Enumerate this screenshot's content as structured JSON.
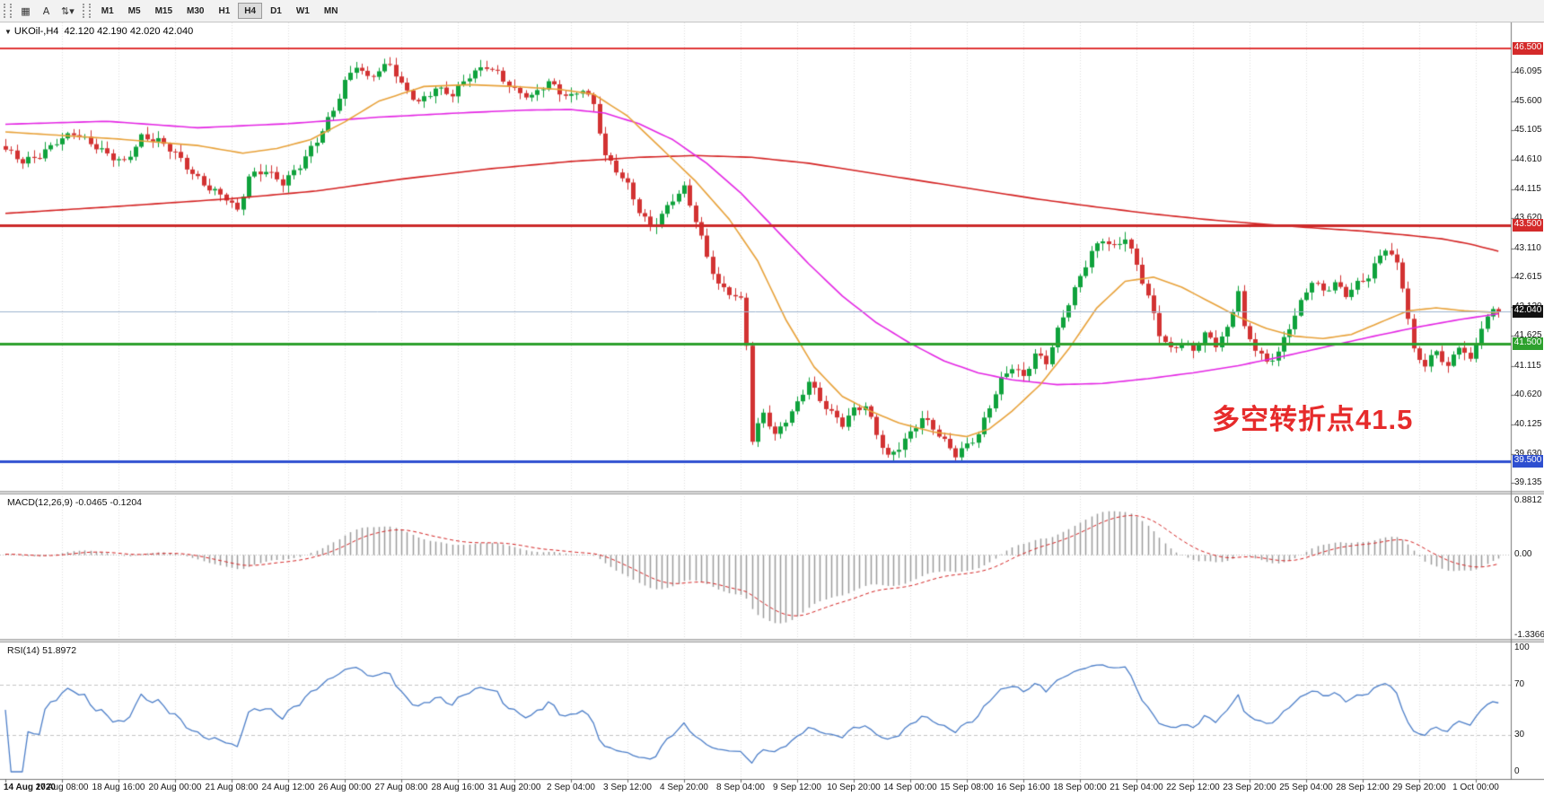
{
  "toolbar": {
    "icon_buttons": [
      {
        "name": "tick-chart-icon",
        "glyph": "▦"
      },
      {
        "name": "text-label-tool-icon",
        "glyph": "A"
      },
      {
        "name": "scale-tool-icon",
        "glyph": "⇅▾"
      }
    ],
    "timeframes": [
      "M1",
      "M5",
      "M15",
      "M30",
      "H1",
      "H4",
      "D1",
      "W1",
      "MN"
    ],
    "active_timeframe": "H4"
  },
  "chart": {
    "title": {
      "symbol_period": "UKOil-,H4",
      "ohlc": "42.120 42.190 42.020 42.040",
      "collapse_glyph": "▼"
    },
    "indicator_labels": {
      "macd": "MACD(12,26,9) -0.0465 -0.1204",
      "rsi": "RSI(14) 51.8972"
    },
    "annotation": {
      "text": "多空转折点41.5",
      "color": "#e62b2b"
    }
  },
  "axes": {
    "price_ticks": [
      "46.095",
      "45.600",
      "45.105",
      "44.610",
      "44.115",
      "43.620",
      "43.110",
      "42.615",
      "42.120",
      "41.625",
      "41.115",
      "40.620",
      "40.125",
      "39.630",
      "39.135"
    ],
    "macd_ticks": [
      {
        "label": "0.8812",
        "value": 0.8812
      },
      {
        "label": "0.00",
        "value": 0
      },
      {
        "label": "-1.3366",
        "value": -1.3366
      }
    ],
    "rsi_ticks": [
      {
        "label": "100",
        "value": 100
      },
      {
        "label": "70",
        "value": 70
      },
      {
        "label": "30",
        "value": 30
      },
      {
        "label": "0",
        "value": 0
      }
    ],
    "time_labels": [
      "14 Aug 2020",
      "17 Aug 08:00",
      "18 Aug 16:00",
      "20 Aug 00:00",
      "21 Aug 08:00",
      "24 Aug 12:00",
      "26 Aug 00:00",
      "27 Aug 08:00",
      "28 Aug 16:00",
      "31 Aug 20:00",
      "2 Sep 04:00",
      "3 Sep 12:00",
      "4 Sep 20:00",
      "8 Sep 04:00",
      "9 Sep 12:00",
      "10 Sep 20:00",
      "14 Sep 00:00",
      "15 Sep 08:00",
      "16 Sep 16:00",
      "18 Sep 00:00",
      "21 Sep 04:00",
      "22 Sep 12:00",
      "23 Sep 20:00",
      "25 Sep 04:00",
      "28 Sep 12:00",
      "29 Sep 20:00",
      "1 Oct 00:00"
    ]
  },
  "chart_data": {
    "type": "candlestick",
    "symbol": "UKOil-",
    "timeframe": "H4",
    "bars_visible": 265,
    "price_range": [
      39.0,
      46.95
    ],
    "current_bar": {
      "open": 42.12,
      "high": 42.19,
      "low": 42.02,
      "close": 42.04
    },
    "close_anchors": [
      [
        0,
        44.75
      ],
      [
        3,
        44.55
      ],
      [
        6,
        44.7
      ],
      [
        9,
        44.95
      ],
      [
        12,
        45.05
      ],
      [
        15,
        44.85
      ],
      [
        18,
        44.7
      ],
      [
        21,
        44.6
      ],
      [
        24,
        45.0
      ],
      [
        27,
        44.9
      ],
      [
        30,
        44.7
      ],
      [
        33,
        44.4
      ],
      [
        36,
        44.15
      ],
      [
        39,
        43.95
      ],
      [
        41,
        43.7
      ],
      [
        43,
        44.3
      ],
      [
        46,
        44.45
      ],
      [
        49,
        44.25
      ],
      [
        52,
        44.5
      ],
      [
        55,
        44.9
      ],
      [
        58,
        45.45
      ],
      [
        60,
        45.95
      ],
      [
        62,
        46.25
      ],
      [
        64,
        46.0
      ],
      [
        66,
        46.1
      ],
      [
        68,
        46.2
      ],
      [
        70,
        45.85
      ],
      [
        73,
        45.6
      ],
      [
        76,
        45.85
      ],
      [
        79,
        45.7
      ],
      [
        82,
        46.0
      ],
      [
        85,
        46.2
      ],
      [
        87,
        46.1
      ],
      [
        90,
        45.8
      ],
      [
        93,
        45.65
      ],
      [
        96,
        45.9
      ],
      [
        98,
        45.75
      ],
      [
        100,
        45.7
      ],
      [
        102,
        45.85
      ],
      [
        104,
        45.55
      ],
      [
        106,
        44.65
      ],
      [
        108,
        44.4
      ],
      [
        110,
        44.15
      ],
      [
        112,
        43.75
      ],
      [
        114,
        43.5
      ],
      [
        116,
        43.7
      ],
      [
        118,
        43.95
      ],
      [
        120,
        44.1
      ],
      [
        122,
        43.55
      ],
      [
        124,
        42.95
      ],
      [
        126,
        42.5
      ],
      [
        128,
        42.4
      ],
      [
        130,
        42.25
      ],
      [
        131,
        41.5
      ],
      [
        132,
        39.85
      ],
      [
        134,
        40.3
      ],
      [
        136,
        39.9
      ],
      [
        138,
        40.2
      ],
      [
        140,
        40.5
      ],
      [
        142,
        40.9
      ],
      [
        144,
        40.55
      ],
      [
        146,
        40.3
      ],
      [
        148,
        40.1
      ],
      [
        150,
        40.35
      ],
      [
        152,
        40.45
      ],
      [
        154,
        40.0
      ],
      [
        156,
        39.6
      ],
      [
        158,
        39.75
      ],
      [
        160,
        39.95
      ],
      [
        162,
        40.2
      ],
      [
        164,
        40.05
      ],
      [
        166,
        39.85
      ],
      [
        168,
        39.65
      ],
      [
        170,
        39.8
      ],
      [
        172,
        39.95
      ],
      [
        174,
        40.4
      ],
      [
        176,
        40.85
      ],
      [
        178,
        41.1
      ],
      [
        180,
        40.95
      ],
      [
        182,
        41.35
      ],
      [
        184,
        41.2
      ],
      [
        186,
        41.7
      ],
      [
        188,
        42.15
      ],
      [
        190,
        42.6
      ],
      [
        192,
        43.05
      ],
      [
        194,
        43.3
      ],
      [
        196,
        43.15
      ],
      [
        198,
        43.3
      ],
      [
        200,
        42.8
      ],
      [
        202,
        42.25
      ],
      [
        204,
        41.65
      ],
      [
        206,
        41.4
      ],
      [
        208,
        41.55
      ],
      [
        210,
        41.4
      ],
      [
        212,
        41.65
      ],
      [
        214,
        41.45
      ],
      [
        216,
        41.7
      ],
      [
        218,
        42.4
      ],
      [
        219,
        41.75
      ],
      [
        221,
        41.45
      ],
      [
        223,
        41.2
      ],
      [
        225,
        41.35
      ],
      [
        227,
        41.75
      ],
      [
        229,
        42.15
      ],
      [
        231,
        42.55
      ],
      [
        233,
        42.4
      ],
      [
        235,
        42.55
      ],
      [
        237,
        42.35
      ],
      [
        239,
        42.5
      ],
      [
        241,
        42.6
      ],
      [
        243,
        42.95
      ],
      [
        244,
        43.1
      ],
      [
        246,
        42.85
      ],
      [
        247,
        42.5
      ],
      [
        249,
        41.4
      ],
      [
        251,
        41.15
      ],
      [
        253,
        41.35
      ],
      [
        255,
        41.05
      ],
      [
        257,
        41.45
      ],
      [
        259,
        41.2
      ],
      [
        260,
        41.55
      ],
      [
        261,
        41.8
      ],
      [
        263,
        42.08
      ],
      [
        264,
        42.04
      ]
    ],
    "ma_lines": [
      {
        "name": "ma-slow-red",
        "color": "#d42222",
        "anchors": [
          [
            0,
            43.7
          ],
          [
            20,
            43.82
          ],
          [
            40,
            43.95
          ],
          [
            55,
            44.08
          ],
          [
            70,
            44.28
          ],
          [
            85,
            44.45
          ],
          [
            100,
            44.58
          ],
          [
            112,
            44.65
          ],
          [
            122,
            44.68
          ],
          [
            132,
            44.65
          ],
          [
            142,
            44.55
          ],
          [
            152,
            44.4
          ],
          [
            162,
            44.25
          ],
          [
            172,
            44.1
          ],
          [
            182,
            43.95
          ],
          [
            192,
            43.82
          ],
          [
            202,
            43.7
          ],
          [
            212,
            43.6
          ],
          [
            222,
            43.52
          ],
          [
            232,
            43.45
          ],
          [
            240,
            43.4
          ],
          [
            248,
            43.33
          ],
          [
            254,
            43.27
          ],
          [
            259,
            43.18
          ],
          [
            264,
            43.06
          ]
        ]
      },
      {
        "name": "ma-mid-magenta",
        "color": "#e426e4",
        "anchors": [
          [
            0,
            45.21
          ],
          [
            18,
            45.26
          ],
          [
            34,
            45.15
          ],
          [
            50,
            45.22
          ],
          [
            66,
            45.33
          ],
          [
            80,
            45.4
          ],
          [
            92,
            45.45
          ],
          [
            100,
            45.46
          ],
          [
            106,
            45.4
          ],
          [
            112,
            45.22
          ],
          [
            118,
            44.95
          ],
          [
            124,
            44.55
          ],
          [
            130,
            44.05
          ],
          [
            136,
            43.45
          ],
          [
            142,
            42.85
          ],
          [
            148,
            42.3
          ],
          [
            154,
            41.85
          ],
          [
            160,
            41.5
          ],
          [
            166,
            41.2
          ],
          [
            172,
            41.0
          ],
          [
            178,
            40.88
          ],
          [
            186,
            40.8
          ],
          [
            194,
            40.82
          ],
          [
            202,
            40.9
          ],
          [
            210,
            41.0
          ],
          [
            218,
            41.12
          ],
          [
            226,
            41.28
          ],
          [
            234,
            41.45
          ],
          [
            242,
            41.62
          ],
          [
            250,
            41.78
          ],
          [
            257,
            41.9
          ],
          [
            264,
            42.0
          ]
        ]
      },
      {
        "name": "ma-fast-orange",
        "color": "#e8a23a",
        "anchors": [
          [
            0,
            45.08
          ],
          [
            20,
            44.96
          ],
          [
            34,
            44.85
          ],
          [
            42,
            44.72
          ],
          [
            48,
            44.8
          ],
          [
            54,
            44.95
          ],
          [
            60,
            45.25
          ],
          [
            66,
            45.6
          ],
          [
            74,
            45.85
          ],
          [
            82,
            45.88
          ],
          [
            90,
            45.85
          ],
          [
            98,
            45.8
          ],
          [
            104,
            45.72
          ],
          [
            110,
            45.35
          ],
          [
            116,
            44.8
          ],
          [
            122,
            44.25
          ],
          [
            128,
            43.6
          ],
          [
            133,
            42.9
          ],
          [
            138,
            41.9
          ],
          [
            143,
            41.1
          ],
          [
            148,
            40.6
          ],
          [
            153,
            40.35
          ],
          [
            158,
            40.15
          ],
          [
            164,
            40.0
          ],
          [
            170,
            39.92
          ],
          [
            174,
            40.05
          ],
          [
            178,
            40.35
          ],
          [
            183,
            40.8
          ],
          [
            188,
            41.4
          ],
          [
            193,
            42.1
          ],
          [
            198,
            42.55
          ],
          [
            203,
            42.62
          ],
          [
            208,
            42.45
          ],
          [
            213,
            42.2
          ],
          [
            218,
            41.95
          ],
          [
            223,
            41.75
          ],
          [
            228,
            41.62
          ],
          [
            233,
            41.58
          ],
          [
            238,
            41.65
          ],
          [
            243,
            41.85
          ],
          [
            248,
            42.05
          ],
          [
            253,
            42.1
          ],
          [
            258,
            42.05
          ],
          [
            264,
            42.02
          ]
        ]
      }
    ],
    "levels": [
      {
        "label": "46.500",
        "price": 46.5,
        "color": "#e03838",
        "line_width": 2,
        "badge_bg": "#d42a2a"
      },
      {
        "label": "43.500",
        "price": 43.5,
        "color": "#cc2929",
        "line_width": 3,
        "badge_bg": "#d42a2a"
      },
      {
        "label": "42.040",
        "price": 42.04,
        "color": "#9db4cf",
        "line_width": 1,
        "badge_bg": "#111111",
        "is_current_price": true
      },
      {
        "label": "41.500",
        "price": 41.5,
        "color": "#2da12d",
        "line_width": 3,
        "badge_bg": "#2da12d"
      },
      {
        "label": "39.500",
        "price": 39.5,
        "color": "#2e4fd0",
        "line_width": 3,
        "badge_bg": "#2e4fd0"
      }
    ],
    "macd": {
      "fast": 12,
      "slow": 26,
      "signal": 9,
      "value": -0.0465,
      "signal_value": -0.1204,
      "scale_max": 0.8812,
      "scale_min": -1.3366,
      "hist_color": "#9c9c9c",
      "signal_color": "#d42222"
    },
    "rsi": {
      "period": 14,
      "value": 51.8972,
      "levels": [
        70,
        30
      ],
      "scale": [
        0,
        100
      ],
      "color": "#4d7fc9"
    },
    "colors": {
      "up": "#0fa23c",
      "down": "#d23232",
      "grid": "#dedede",
      "background": "#ffffff"
    }
  }
}
